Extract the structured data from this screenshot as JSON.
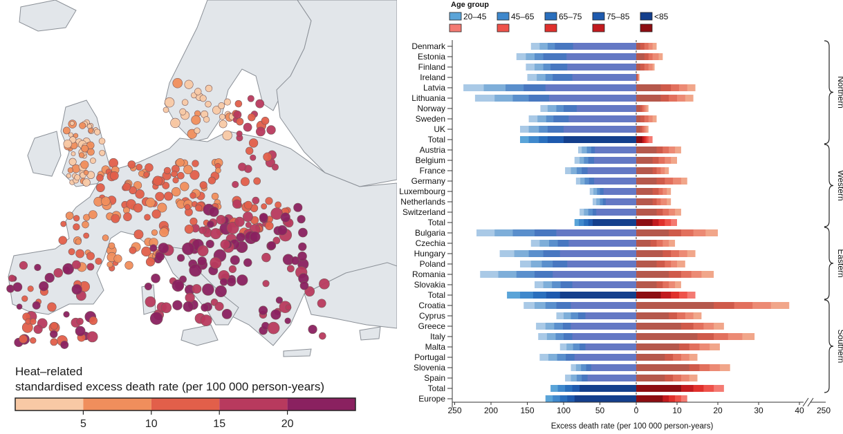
{
  "map": {
    "legend_title_line1": "Heat–related",
    "legend_title_line2": "standardised excess death rate (per 100 000 person-years)",
    "colorbar": [
      {
        "color": "#f8c9a5"
      },
      {
        "color": "#f08e5c"
      },
      {
        "color": "#e25f4a"
      },
      {
        "color": "#b83a5e"
      },
      {
        "color": "#8a2160"
      }
    ],
    "ticks": [
      {
        "label": "5",
        "value": 5
      },
      {
        "label": "10",
        "value": 10
      },
      {
        "label": "15",
        "value": 15
      },
      {
        "label": "20",
        "value": 20
      }
    ],
    "colors": {
      "land": "#e2e6ea",
      "sea": "#ffffff",
      "border": "#8a8f96"
    }
  },
  "chart_data": {
    "type": "bar",
    "legend_title": "Age group",
    "age_groups": [
      "20–45",
      "45–65",
      "65–75",
      "75–85",
      "<85"
    ],
    "cold_colors": [
      "#a9c9e6",
      "#7eaed9",
      "#5a8fcc",
      "#4877c0",
      "#6478c4"
    ],
    "heat_colors": [
      "#f1a68a",
      "#ec8a74",
      "#e2705d",
      "#cf5a4a",
      "#b5584c"
    ],
    "total_cold_colors": [
      "#5aa4d8",
      "#3f88cc",
      "#2a6fbd",
      "#1e5aae",
      "#143f8c"
    ],
    "total_heat_colors": [
      "#f47a72",
      "#ee524a",
      "#e0302c",
      "#c21a1e",
      "#8c0d12"
    ],
    "legend_total_heat": [
      "#f47a72",
      "#ee524a",
      "#e0302c",
      "#c21a1e",
      "#8c0d12"
    ],
    "xlabel": "Excess death rate (per 100 000 person-years)",
    "left_ticks": [
      250,
      200,
      150,
      100,
      50,
      0
    ],
    "right_ticks": [
      10,
      20,
      30,
      40
    ],
    "right_axis_end_label": "250",
    "regions": [
      {
        "name": "Northern",
        "rows": [
          {
            "country": "Denmark",
            "cold": [
              145,
              133,
              122,
              112,
              87
            ],
            "heat": [
              5,
              4,
              3,
              2,
              1
            ]
          },
          {
            "country": "Estonia",
            "cold": [
              165,
              152,
              140,
              128,
              96
            ],
            "heat": [
              6.5,
              5.5,
              4,
              3,
              2
            ]
          },
          {
            "country": "Finland",
            "cold": [
              152,
              140,
              128,
              118,
              95
            ],
            "heat": [
              4.5,
              4,
              3,
              2,
              1
            ]
          },
          {
            "country": "Ireland",
            "cold": [
              150,
              137,
              125,
              115,
              88
            ],
            "heat": [
              0.8,
              0.6,
              0.5,
              0.3,
              0.2
            ]
          },
          {
            "country": "Latvia",
            "cold": [
              238,
              210,
              180,
              155,
              125
            ],
            "heat": [
              14.5,
              12.5,
              10.5,
              8.5,
              6
            ]
          },
          {
            "country": "Lithuania",
            "cold": [
              222,
              195,
              170,
              148,
              120
            ],
            "heat": [
              14,
              12,
              10,
              8,
              6
            ]
          },
          {
            "country": "Norway",
            "cold": [
              132,
              122,
              110,
              100,
              82
            ],
            "heat": [
              3,
              2.5,
              2,
              1.5,
              1
            ]
          },
          {
            "country": "Sweden",
            "cold": [
              148,
              136,
              124,
              114,
              93
            ],
            "heat": [
              5,
              4,
              3,
              2,
              1
            ]
          },
          {
            "country": "UK",
            "cold": [
              160,
              148,
              134,
              122,
              100
            ],
            "heat": [
              3,
              2.5,
              2,
              1.5,
              1
            ]
          },
          {
            "country": "Total",
            "total": true,
            "cold": [
              160,
              148,
              134,
              122,
              100
            ],
            "heat": [
              4,
              3,
              2.5,
              2,
              1.5
            ]
          }
        ]
      },
      {
        "name": "Western",
        "rows": [
          {
            "country": "Austria",
            "cold": [
              80,
              75,
              68,
              62,
              57
            ],
            "heat": [
              11,
              9.5,
              8,
              6.5,
              5
            ]
          },
          {
            "country": "Belgium",
            "cold": [
              85,
              78,
              72,
              66,
              58
            ],
            "heat": [
              10,
              8.5,
              7,
              5.5,
              4
            ]
          },
          {
            "country": "France",
            "cold": [
              98,
              90,
              82,
              75,
              67
            ],
            "heat": [
              8,
              7,
              6,
              5,
              4
            ]
          },
          {
            "country": "Germany",
            "cold": [
              83,
              77,
              71,
              65,
              58
            ],
            "heat": [
              12.5,
              11,
              9,
              7,
              5
            ]
          },
          {
            "country": "Luxembourg",
            "cold": [
              64,
              59,
              54,
              50,
              45
            ],
            "heat": [
              8.5,
              7.5,
              6.5,
              5.5,
              4
            ]
          },
          {
            "country": "Netherlands",
            "cold": [
              60,
              55,
              50,
              46,
              42
            ],
            "heat": [
              8.5,
              7.5,
              6,
              5,
              4
            ]
          },
          {
            "country": "Switzerland",
            "cold": [
              78,
              72,
              66,
              60,
              55
            ],
            "heat": [
              11,
              9.5,
              8,
              6.5,
              5
            ]
          },
          {
            "country": "Total",
            "total": true,
            "cold": [
              85,
              79,
              72,
              66,
              60
            ],
            "heat": [
              10,
              8.5,
              7,
              5.5,
              4
            ]
          }
        ]
      },
      {
        "name": "Eastern",
        "rows": [
          {
            "country": "Bulgaria",
            "cold": [
              220,
              195,
              170,
              140,
              110
            ],
            "heat": [
              20,
              17,
              14,
              11,
              8
            ]
          },
          {
            "country": "Czechia",
            "cold": [
              145,
              133,
              120,
              108,
              93
            ],
            "heat": [
              9.5,
              8,
              6.5,
              5,
              3.5
            ]
          },
          {
            "country": "Hungary",
            "cold": [
              188,
              168,
              148,
              128,
              105
            ],
            "heat": [
              14.5,
              12.5,
              10.5,
              8.5,
              6.5
            ]
          },
          {
            "country": "Poland",
            "cold": [
              160,
              145,
              130,
              115,
              95
            ],
            "heat": [
              12,
              10,
              8.5,
              7,
              5
            ]
          },
          {
            "country": "Romania",
            "cold": [
              215,
              190,
              165,
              140,
              115
            ],
            "heat": [
              19,
              16,
              13.5,
              11,
              8
            ]
          },
          {
            "country": "Slovakia",
            "cold": [
              140,
              128,
              116,
              104,
              88
            ],
            "heat": [
              11,
              9.5,
              8,
              6.5,
              5
            ]
          },
          {
            "country": "Total",
            "total": true,
            "cold": [
              178,
              160,
              142,
              124,
              105
            ],
            "heat": [
              14.5,
              12.5,
              10.5,
              8.5,
              6
            ]
          }
        ]
      },
      {
        "name": "Southern",
        "rows": [
          {
            "country": "Croatia",
            "cold": [
              155,
              140,
              125,
              110,
              90
            ],
            "heat": [
              37.5,
              33,
              28.5,
              24,
              19
            ]
          },
          {
            "country": "Cyprus",
            "cold": [
              110,
              100,
              90,
              80,
              70
            ],
            "heat": [
              16,
              14,
              12,
              10,
              8
            ]
          },
          {
            "country": "Greece",
            "cold": [
              138,
              125,
              113,
              101,
              90
            ],
            "heat": [
              21.5,
              19,
              16.5,
              14,
              11
            ]
          },
          {
            "country": "Italy",
            "cold": [
              135,
              123,
              111,
              100,
              88
            ],
            "heat": [
              29,
              26,
              22.5,
              19,
              15
            ]
          },
          {
            "country": "Malta",
            "cold": [
              105,
              96,
              87,
              78,
              70
            ],
            "heat": [
              20.5,
              18,
              15.5,
              13,
              10.5
            ]
          },
          {
            "country": "Portugal",
            "cold": [
              133,
              121,
              109,
              97,
              85
            ],
            "heat": [
              15,
              13,
              11,
              9,
              7
            ]
          },
          {
            "country": "Slovenia",
            "cold": [
              90,
              83,
              76,
              69,
              62
            ],
            "heat": [
              23,
              20.5,
              18,
              15.5,
              13
            ]
          },
          {
            "country": "Spain",
            "cold": [
              98,
              90,
              82,
              75,
              67
            ],
            "heat": [
              15,
              13,
              11,
              9,
              7
            ]
          },
          {
            "country": "Total",
            "total": true,
            "cold": [
              118,
              108,
              98,
              88,
              78
            ],
            "heat": [
              21.5,
              19,
              16.5,
              14,
              11
            ]
          }
        ]
      },
      {
        "name": "",
        "rows": [
          {
            "country": "Europe",
            "total": true,
            "cold": [
              125,
              115,
              105,
              95,
              85
            ],
            "heat": [
              12.5,
              11,
              9.5,
              8,
              6.5
            ]
          }
        ]
      }
    ]
  }
}
